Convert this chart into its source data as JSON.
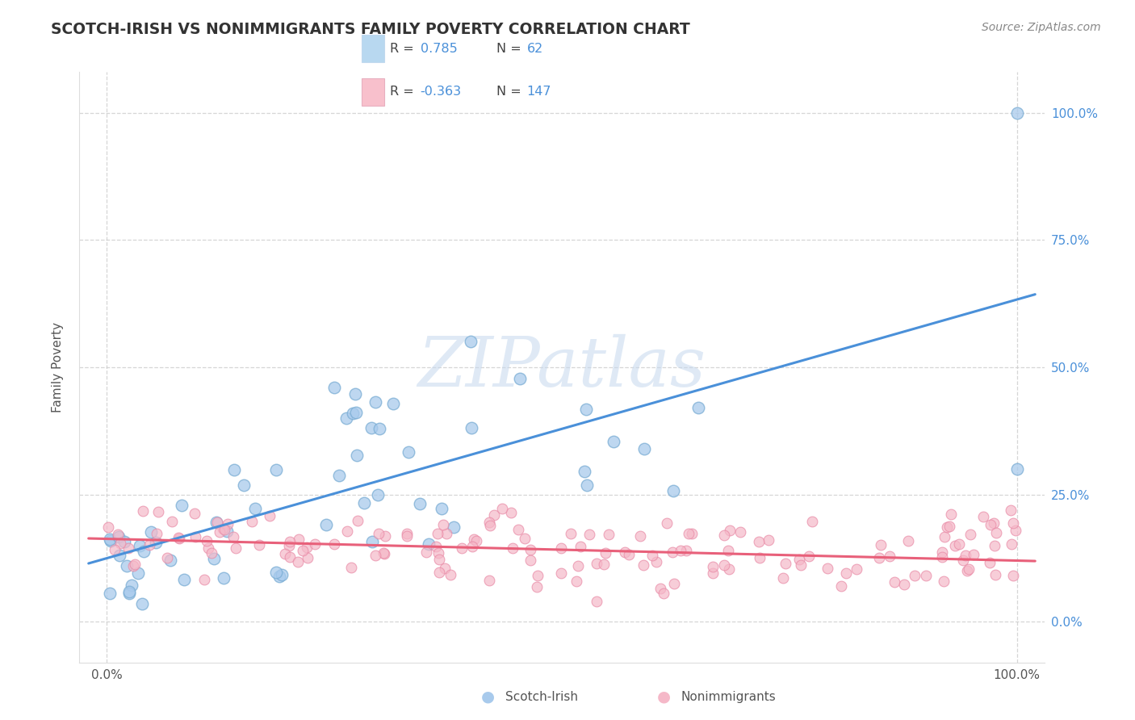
{
  "title": "SCOTCH-IRISH VS NONIMMIGRANTS FAMILY POVERTY CORRELATION CHART",
  "source_text": "Source: ZipAtlas.com",
  "ylabel": "Family Poverty",
  "watermark_text": "ZIPatlas",
  "blue_R": 0.785,
  "blue_N": 62,
  "pink_R": -0.363,
  "pink_N": 147,
  "blue_dot_color": "#a8caec",
  "blue_dot_edge": "#7aadd4",
  "pink_dot_color": "#f5b8c8",
  "pink_dot_edge": "#e889a5",
  "blue_line_color": "#4a90d9",
  "pink_line_color": "#e8607a",
  "legend_blue_fill": "#b8d8f0",
  "legend_pink_fill": "#f8c0cc",
  "right_axis_color": "#4a90d9",
  "title_color": "#333333",
  "source_color": "#888888",
  "label_color": "#555555",
  "grid_color": "#cccccc",
  "y_ticks": [
    0,
    25,
    50,
    75,
    100
  ],
  "y_tick_labels": [
    "0.0%",
    "25.0%",
    "50.0%",
    "75.0%",
    "100.0%"
  ]
}
